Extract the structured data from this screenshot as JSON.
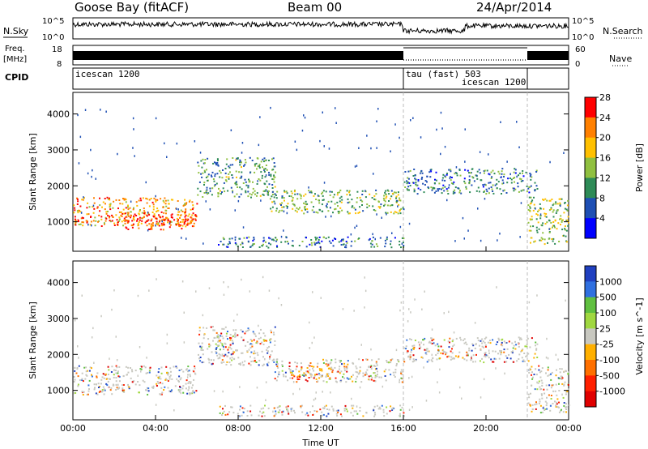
{
  "header": {
    "radar": "Goose Bay (fitACF)",
    "beam": "Beam 00",
    "date": "24/Apr/2014"
  },
  "strip_labels": {
    "nsky": "N.Sky",
    "nsky_top": "10^5",
    "nsky_bottom": "10^0",
    "freq_1": "Freq.",
    "freq_2": "[MHz]",
    "freq_top": "18",
    "freq_bottom": "8",
    "cpid": "CPID",
    "nsearch": "N.Search",
    "nsearch_top": "10^5",
    "nsearch_bottom": "10^0",
    "nave": "Nave",
    "nave_top": "60",
    "nave_bottom": "0"
  },
  "cpid_segments": [
    {
      "label": "icescan 1200",
      "start_hour": 0,
      "end_hour": 16
    },
    {
      "label": "tau (fast) 503",
      "start_hour": 16,
      "end_hour": 22
    },
    {
      "label": "icescan 1200",
      "start_hour": 18.7,
      "end_hour": 22
    }
  ],
  "chart_data": [
    {
      "type": "heatmap",
      "title": "",
      "xlabel": "Time UT",
      "ylabel": "Slant Range [km]",
      "xlim": [
        0,
        24
      ],
      "ylim": [
        180,
        4600
      ],
      "x_ticks": [
        "00:00",
        "04:00",
        "08:00",
        "12:00",
        "16:00",
        "20:00",
        "00:00"
      ],
      "y_ticks": [
        "1000",
        "2000",
        "3000",
        "4000"
      ],
      "colorbar": {
        "label": "Power [dB]",
        "ticks": [
          "4",
          "8",
          "12",
          "16",
          "20",
          "24",
          "28"
        ],
        "colors": [
          "#0000ff",
          "#1e4fb4",
          "#2e8b57",
          "#90c040",
          "#ffc000",
          "#ff8000",
          "#ff0000"
        ]
      },
      "echo_regions": [
        {
          "t0": 0.0,
          "t1": 6.0,
          "r0": 900,
          "r1": 1700,
          "level": 0.75
        },
        {
          "t0": 0.0,
          "t1": 6.0,
          "r0": 1000,
          "r1": 1200,
          "level": 1.0
        },
        {
          "t0": 2.5,
          "t1": 6.0,
          "r0": 800,
          "r1": 1300,
          "level": 0.9
        },
        {
          "t0": 6.0,
          "t1": 9.8,
          "r0": 1700,
          "r1": 2800,
          "level": 0.35
        },
        {
          "t0": 9.5,
          "t1": 16.0,
          "r0": 1250,
          "r1": 1900,
          "level": 0.45
        },
        {
          "t0": 7.0,
          "t1": 16.0,
          "r0": 300,
          "r1": 600,
          "level": 0.25
        },
        {
          "t0": 16.0,
          "t1": 22.5,
          "r0": 1800,
          "r1": 2500,
          "level": 0.3
        },
        {
          "t0": 22.0,
          "t1": 24.0,
          "r0": 400,
          "r1": 1700,
          "level": 0.5
        }
      ]
    },
    {
      "type": "heatmap",
      "title": "",
      "xlabel": "Time UT",
      "ylabel": "Slant Range [km]",
      "xlim": [
        0,
        24
      ],
      "ylim": [
        180,
        4600
      ],
      "x_ticks": [
        "00:00",
        "04:00",
        "08:00",
        "12:00",
        "16:00",
        "20:00",
        "00:00"
      ],
      "y_ticks": [
        "1000",
        "2000",
        "3000",
        "4000"
      ],
      "colorbar": {
        "label": "Velocity [m s^-1]",
        "ticks": [
          "1000",
          "500",
          "100",
          "25",
          "-25",
          "-100",
          "-500",
          "-1000"
        ],
        "colors": [
          "#2040c0",
          "#3070e0",
          "#60c040",
          "#a0d840",
          "#c8c8c0",
          "#ffb000",
          "#ff7000",
          "#ff2000",
          "#e00000"
        ]
      },
      "echo_regions": [
        {
          "t0": 0.0,
          "t1": 6.0,
          "r0": 900,
          "r1": 1700,
          "level": 0.6
        },
        {
          "t0": 6.0,
          "t1": 9.8,
          "r0": 1700,
          "r1": 2800,
          "level": 0.5
        },
        {
          "t0": 9.5,
          "t1": 16.0,
          "r0": 1250,
          "r1": 1900,
          "level": 0.5
        },
        {
          "t0": 10.5,
          "t1": 12.5,
          "r0": 1400,
          "r1": 1700,
          "level": 0.8
        },
        {
          "t0": 7.0,
          "t1": 16.0,
          "r0": 300,
          "r1": 600,
          "level": 0.7
        },
        {
          "t0": 16.0,
          "t1": 22.5,
          "r0": 1800,
          "r1": 2500,
          "level": 0.5
        },
        {
          "t0": 22.0,
          "t1": 24.0,
          "r0": 400,
          "r1": 1700,
          "level": 0.6
        }
      ]
    }
  ]
}
